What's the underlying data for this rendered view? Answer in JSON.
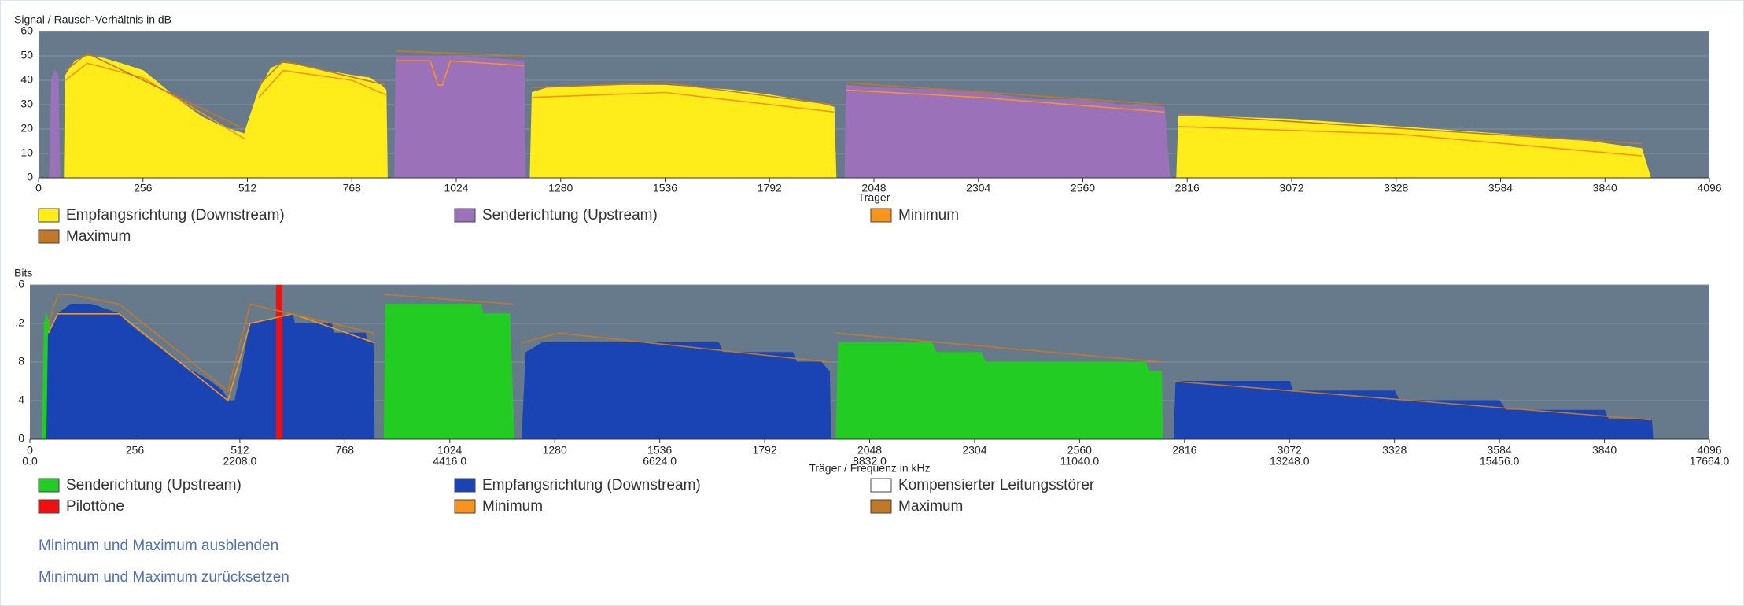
{
  "chart_data": [
    {
      "type": "area",
      "title": "Signal / Rausch-Verhältnis in dB",
      "xlabel": "Träger",
      "xlim": [
        0,
        4096
      ],
      "xticks": [
        0,
        256,
        512,
        768,
        1024,
        1280,
        1536,
        1792,
        2048,
        2304,
        2560,
        2816,
        3072,
        3328,
        3584,
        3840,
        4096
      ],
      "ylim": [
        0,
        60
      ],
      "yticks": [
        0,
        10,
        20,
        30,
        40,
        50,
        60
      ],
      "grid": true,
      "background": "#677a8c",
      "series": [
        {
          "name": "Empfangsrichtung (Downstream)",
          "color": "#ffec1a",
          "style": "area",
          "x": [
            63,
            66,
            90,
            120,
            160,
            200,
            256,
            300,
            350,
            400,
            450,
            505,
            512,
            540,
            570,
            600,
            650,
            700,
            768,
            810,
            840,
            852,
            855,
            null,
            1205,
            1210,
            1250,
            1400,
            1536,
            1700,
            1792,
            1900,
            1950,
            1955,
            null,
            2790,
            2795,
            2900,
            3072,
            3328,
            3584,
            3800,
            3930,
            3952
          ],
          "values": [
            0,
            42,
            48,
            50,
            49,
            47,
            44,
            38,
            31,
            25,
            21,
            18,
            22,
            36,
            45,
            47,
            46,
            44,
            42,
            41,
            38,
            36,
            0,
            null,
            0,
            35,
            37,
            38,
            38,
            36,
            34,
            31,
            29,
            0,
            null,
            0,
            25,
            25,
            24,
            21,
            18,
            15,
            12,
            0
          ]
        },
        {
          "name": "Senderichtung (Upstream)",
          "color": "#9b72b9",
          "style": "area",
          "x": [
            27,
            32,
            40,
            48,
            52,
            null,
            873,
            876,
            1000,
            1100,
            1190,
            1194,
            null,
            1977,
            1980,
            2048,
            2200,
            2304,
            2450,
            2560,
            2650,
            2760,
            2773
          ],
          "values": [
            0,
            40,
            44,
            42,
            0,
            null,
            0,
            50,
            50,
            49,
            48,
            0,
            null,
            0,
            38,
            37,
            36,
            35,
            32,
            32,
            30,
            29,
            0
          ]
        },
        {
          "name": "Minimum",
          "color": "#f7941d",
          "style": "line",
          "x": [
            66,
            120,
            256,
            505,
            null,
            540,
            600,
            768,
            852,
            null,
            876,
            960,
            980,
            990,
            1010,
            1190,
            null,
            1210,
            1536,
            1950,
            null,
            1980,
            2304,
            2760,
            null,
            2795,
            3328,
            3930
          ],
          "values": [
            40,
            47,
            41,
            16,
            null,
            33,
            44,
            40,
            34,
            null,
            48,
            48,
            38,
            38,
            48,
            46,
            null,
            33,
            35,
            27,
            null,
            36,
            33,
            27,
            null,
            21,
            18,
            9
          ]
        },
        {
          "name": "Maximum",
          "color": "#c0782a",
          "style": "line",
          "x": [
            66,
            120,
            505,
            null,
            540,
            600,
            852,
            null,
            876,
            1190,
            null,
            1210,
            1536,
            1950,
            null,
            1980,
            2760,
            null,
            2795,
            3930
          ],
          "values": [
            44,
            51,
            20,
            null,
            38,
            48,
            38,
            null,
            52,
            50,
            null,
            37,
            39,
            30,
            null,
            39,
            30,
            null,
            26,
            14
          ]
        }
      ]
    },
    {
      "type": "area",
      "title": "Bits",
      "xlabel": "Träger / Frequenz in kHz",
      "xlim": [
        0,
        4096
      ],
      "xticks": [
        0,
        256,
        512,
        768,
        1024,
        1280,
        1536,
        1792,
        2048,
        2304,
        2560,
        2816,
        3072,
        3328,
        3584,
        3840,
        4096
      ],
      "x2ticks": [
        {
          "value": 0,
          "label": "0.0"
        },
        {
          "value": 512,
          "label": "2208.0"
        },
        {
          "value": 1024,
          "label": "4416.0"
        },
        {
          "value": 1536,
          "label": "6624.0"
        },
        {
          "value": 2048,
          "label": "8832.0"
        },
        {
          "value": 2560,
          "label": "11040.0"
        },
        {
          "value": 3072,
          "label": "13248.0"
        },
        {
          "value": 3584,
          "label": "15456.0"
        },
        {
          "value": 4096,
          "label": "17664.0"
        }
      ],
      "ylim": [
        0,
        16
      ],
      "yticks": [
        0,
        4,
        8,
        {
          "value": 12,
          "label": ".2"
        },
        {
          "value": 16,
          "label": ".6"
        }
      ],
      "grid": true,
      "background": "#677a8c",
      "series": [
        {
          "name": "Senderichtung (Upstream)",
          "color": "#22cc22",
          "style": "area",
          "x": [
            30,
            35,
            40,
            48,
            52,
            null,
            864,
            868,
            1100,
            1105,
            1170,
            1181,
            null,
            1966,
            1972,
            2200,
            2210,
            2320,
            2330,
            2720,
            2730,
            2760,
            2762
          ],
          "values": [
            0,
            12,
            13,
            12,
            0,
            null,
            0,
            14,
            14,
            13,
            13,
            0,
            null,
            0,
            10,
            10,
            9,
            9,
            8,
            8,
            7,
            7,
            0
          ]
        },
        {
          "name": "Empfangsrichtung (Downstream)",
          "color": "#1a44b4",
          "style": "area",
          "x": [
            41,
            45,
            68,
            100,
            150,
            218,
            240,
            270,
            300,
            330,
            360,
            400,
            440,
            470,
            483,
            500,
            520,
            537,
            641,
            645,
            736,
            740,
            818,
            822,
            837,
            840,
            null,
            1200,
            1210,
            1250,
            1680,
            1690,
            1860,
            1870,
            1930,
            1950,
            1953,
            null,
            2790,
            2795,
            3072,
            3080,
            3328,
            3340,
            3584,
            3600,
            3840,
            3850,
            3955,
            3958
          ],
          "values": [
            0,
            11,
            13,
            14,
            14,
            13,
            12,
            11,
            10,
            9,
            8,
            7,
            6,
            5,
            4,
            4,
            8,
            12,
            13,
            12,
            12,
            11,
            11,
            10,
            10,
            0,
            null,
            0,
            9,
            10,
            10,
            9,
            9,
            8,
            8,
            7,
            0,
            null,
            0,
            6,
            6,
            5,
            5,
            4,
            4,
            3,
            3,
            2,
            2,
            0
          ]
        },
        {
          "name": "Kompensierter Leitungsstörer",
          "color": "#ffffff",
          "style": "area",
          "x": [],
          "values": []
        },
        {
          "name": "Pilottöne",
          "color": "#ee1111",
          "style": "bar",
          "x": [
            608
          ],
          "values": [
            16
          ]
        },
        {
          "name": "Minimum",
          "color": "#f7941d",
          "style": "line",
          "x": [
            45,
            68,
            218,
            483,
            537,
            641,
            840
          ],
          "values": [
            11,
            13,
            13,
            4,
            12,
            13,
            10
          ]
        },
        {
          "name": "Maximum",
          "color": "#c0782a",
          "style": "line",
          "x": [
            45,
            68,
            100,
            218,
            483,
            537,
            840,
            null,
            864,
            868,
            1181,
            null,
            1200,
            1290,
            1950,
            null,
            1966,
            2762,
            null,
            2790,
            3955
          ],
          "values": [
            12,
            15,
            15,
            14,
            5,
            14,
            11,
            null,
            15,
            15,
            14,
            null,
            10,
            11,
            8,
            null,
            11,
            8,
            null,
            6,
            2
          ]
        }
      ]
    }
  ],
  "links": [
    "Minimum und Maximum ausblenden",
    "Minimum und Maximum zurücksetzen"
  ]
}
